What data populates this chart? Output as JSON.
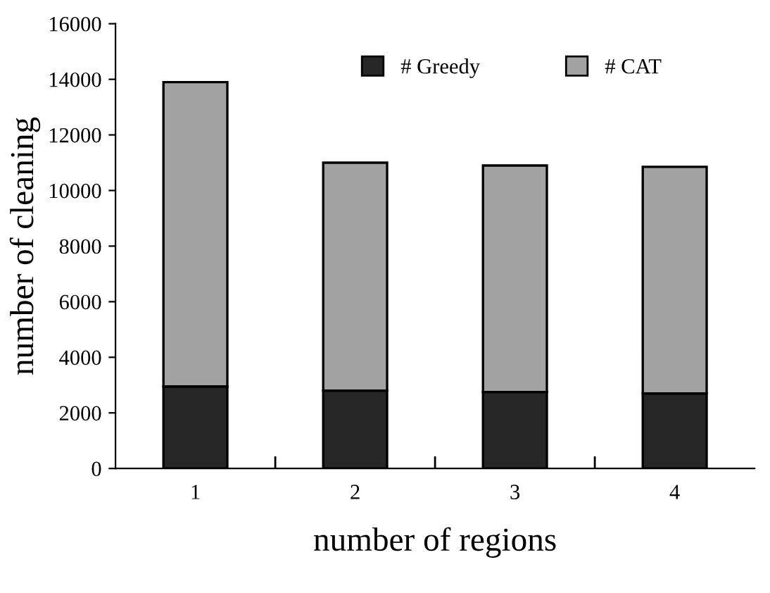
{
  "chart_data": {
    "type": "bar",
    "stacked": true,
    "xlabel": "number of regions",
    "ylabel": "number of cleaning",
    "categories": [
      "1",
      "2",
      "3",
      "4"
    ],
    "series": [
      {
        "name": "# Greedy",
        "color": "#262626",
        "values": [
          2950,
          2800,
          2750,
          2700
        ]
      },
      {
        "name": "# CAT",
        "color": "#a3a3a3",
        "values": [
          10950,
          8200,
          8150,
          8150
        ]
      }
    ],
    "ylim": [
      0,
      16000
    ],
    "yticks": [
      0,
      2000,
      4000,
      6000,
      8000,
      10000,
      12000,
      14000,
      16000
    ],
    "grid": false,
    "legend": "top"
  }
}
